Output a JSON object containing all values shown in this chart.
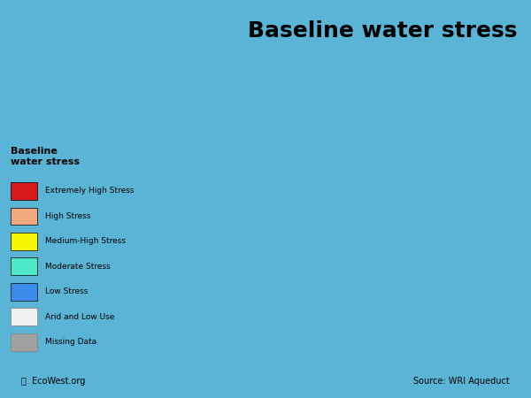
{
  "title": "Baseline water stress",
  "title_fontsize": 18,
  "title_bold": true,
  "legend_title": "Baseline\nwater stress",
  "legend_entries": [
    {
      "label": "Extremely High Stress",
      "color": "#d7191c"
    },
    {
      "label": "High Stress",
      "color": "#f0a87e"
    },
    {
      "label": "Medium-High Stress",
      "color": "#f5f500"
    },
    {
      "label": "Moderate Stress",
      "color": "#4de8c8"
    },
    {
      "label": "Low Stress",
      "color": "#3b8beb"
    },
    {
      "label": "Arid and Low Use",
      "color": "#f0f0f0"
    },
    {
      "label": "Missing Data",
      "color": "#a0a0a0"
    }
  ],
  "background_color": "#5ab4d6",
  "source_text": "Source: WRI Aqueduct",
  "ecowest_text": "EcoWest.org",
  "fig_width": 6.0,
  "fig_height": 4.5,
  "dpi": 100
}
